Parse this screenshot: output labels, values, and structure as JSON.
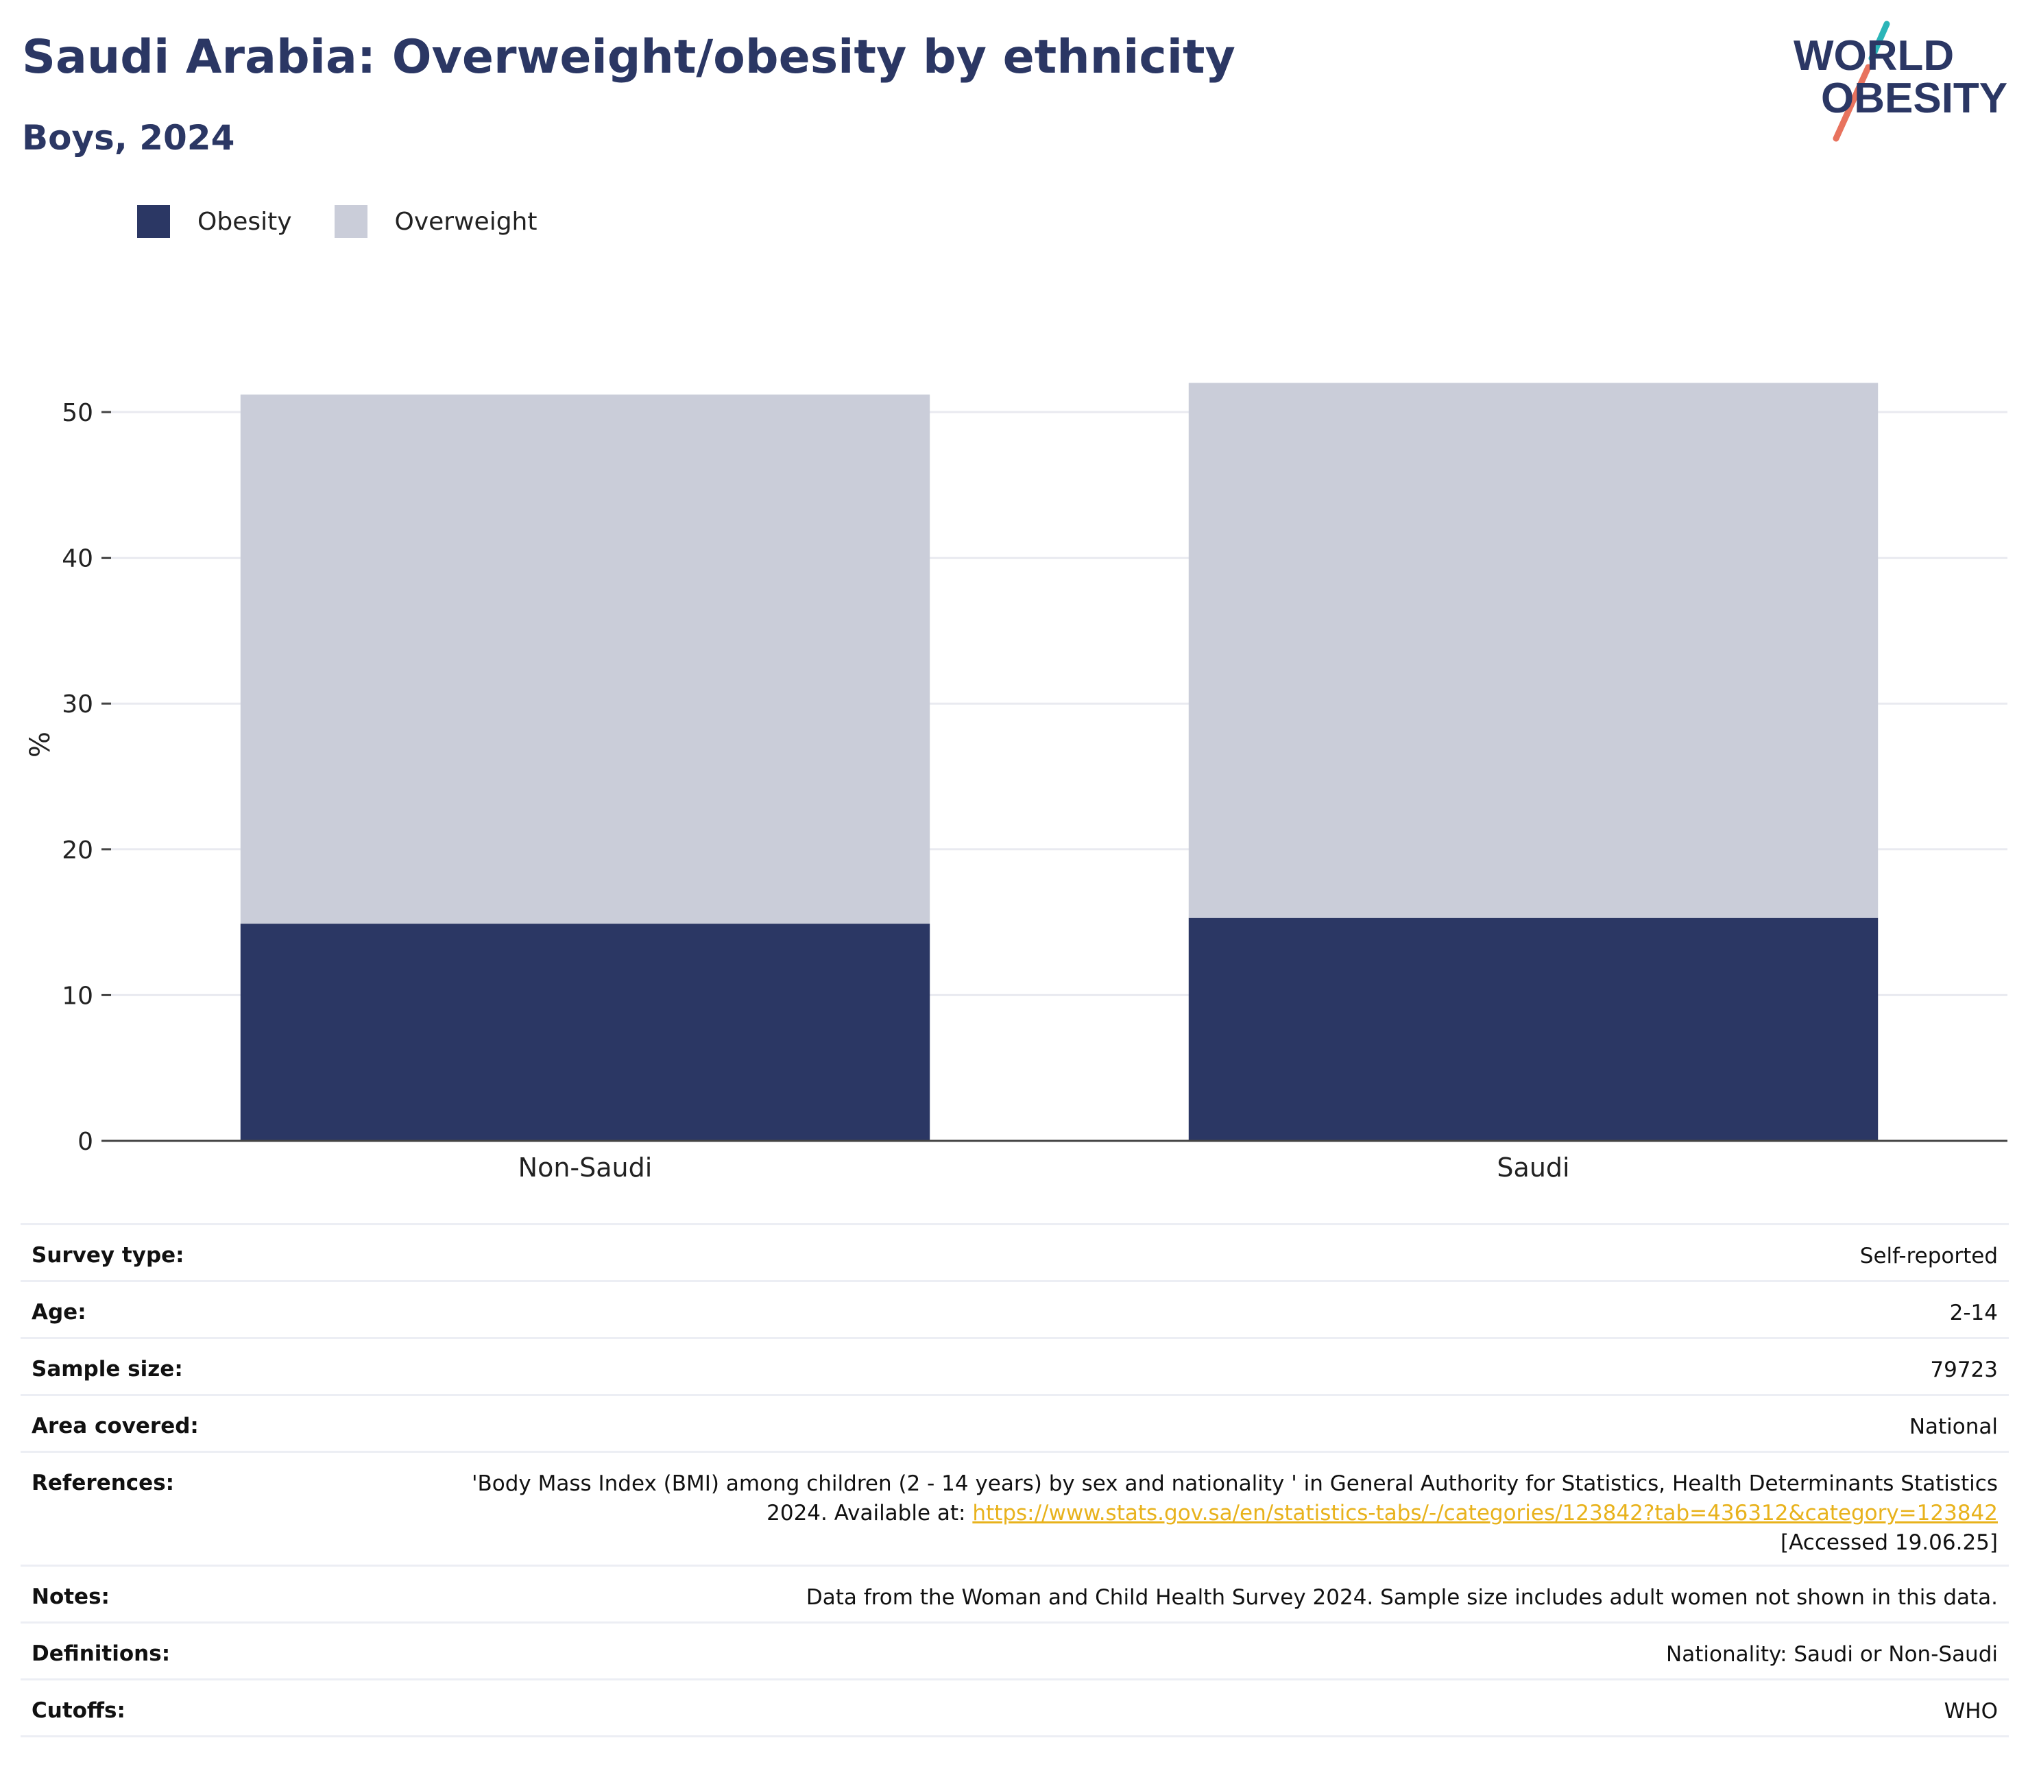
{
  "header": {
    "title": "Saudi Arabia: Overweight/obesity by ethnicity",
    "subtitle": "Boys, 2024"
  },
  "logo": {
    "line1": "WORLD",
    "line2": "OBESITY",
    "colors": {
      "text": "#2b3764",
      "teal": "#2bb5b8",
      "coral": "#e8735e"
    }
  },
  "legend": [
    {
      "label": "Obesity",
      "color": "#2b3764"
    },
    {
      "label": "Overweight",
      "color": "#cacdd9"
    }
  ],
  "chart_data": {
    "type": "bar",
    "stacked": true,
    "categories": [
      "Non-Saudi",
      "Saudi"
    ],
    "series": [
      {
        "name": "Obesity",
        "color": "#2b3764",
        "values": [
          14.9,
          15.3
        ]
      },
      {
        "name": "Overweight",
        "color": "#cacdd9",
        "values": [
          36.3,
          36.7
        ]
      }
    ],
    "ylabel": "%",
    "ylim": [
      0,
      55
    ],
    "yticks": [
      0,
      10,
      20,
      30,
      40,
      50
    ],
    "grid": true,
    "legend_position": "top-left"
  },
  "info_table": {
    "survey_type": {
      "label": "Survey type:",
      "value": "Self-reported"
    },
    "age": {
      "label": "Age:",
      "value": "2-14"
    },
    "sample_size": {
      "label": "Sample size:",
      "value": "79723"
    },
    "area": {
      "label": "Area covered:",
      "value": "National"
    },
    "references": {
      "label": "References:",
      "text_before": "'Body Mass Index (BMI) among children (2 - 14 years) by sex and nationality ' in General Authority for Statistics, Health Determinants Statistics 2024. Available at: ",
      "link": "https://www.stats.gov.sa/en/statistics-tabs/-/categories/123842?tab=436312&category=123842",
      "text_after": "[Accessed 19.06.25]"
    },
    "notes": {
      "label": "Notes:",
      "value": "Data from the Woman and Child Health Survey 2024. Sample size includes adult women not shown in this data."
    },
    "definitions": {
      "label": "Definitions:",
      "value": "Nationality: Saudi or Non-Saudi"
    },
    "cutoffs": {
      "label": "Cutoffs:",
      "value": "WHO"
    }
  }
}
